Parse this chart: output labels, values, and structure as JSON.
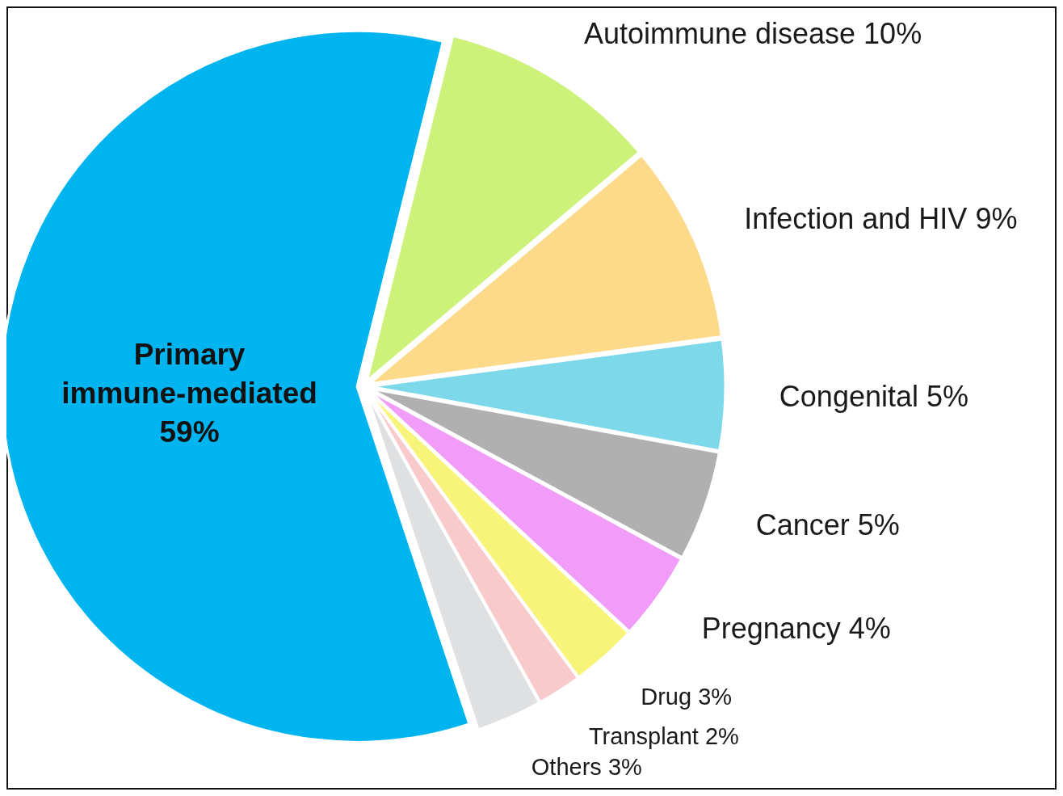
{
  "chart_data": {
    "type": "pie",
    "categories": [
      "Primary immune-mediated",
      "Autoimmune disease",
      "Infection and HIV",
      "Congenital",
      "Cancer",
      "Pregnancy",
      "Drug",
      "Transplant",
      "Others"
    ],
    "values": [
      59,
      10,
      9,
      5,
      5,
      4,
      3,
      2,
      3
    ],
    "value_labels": [
      "59%",
      "10%",
      "9%",
      "5%",
      "5%",
      "4%",
      "3%",
      "2%",
      "3%"
    ],
    "colors": [
      "#00b4f0",
      "#ccf27a",
      "#fdd98a",
      "#7dd8ea",
      "#b0b0b0",
      "#f09cf8",
      "#f8f47a",
      "#f9cacc",
      "#dfe0e2"
    ]
  }
}
